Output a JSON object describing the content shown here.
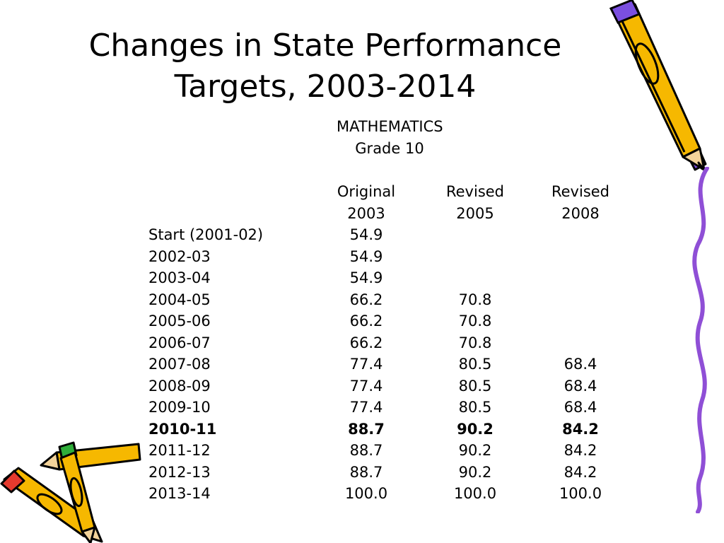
{
  "title": {
    "line1": "Changes in State Performance",
    "line2": "Targets, 2003-2014"
  },
  "subject": "MATHEMATICS",
  "grade": "Grade 10",
  "columns": [
    {
      "line1": "Original",
      "line2": "2003"
    },
    {
      "line1": "Revised",
      "line2": "2005"
    },
    {
      "line1": "Revised",
      "line2": "2008"
    }
  ],
  "rows": [
    {
      "label": "Start (2001-02)",
      "v1": "54.9",
      "v2": "",
      "v3": ""
    },
    {
      "label": "2002-03",
      "v1": "54.9",
      "v2": "",
      "v3": ""
    },
    {
      "label": "2003-04",
      "v1": "54.9",
      "v2": "",
      "v3": ""
    },
    {
      "label": "2004-05",
      "v1": "66.2",
      "v2": "70.8",
      "v3": ""
    },
    {
      "label": "2005-06",
      "v1": "66.2",
      "v2": "70.8",
      "v3": ""
    },
    {
      "label": "2006-07",
      "v1": "66.2",
      "v2": "70.8",
      "v3": ""
    },
    {
      "label": "2007-08",
      "v1": "77.4",
      "v2": "80.5",
      "v3": "68.4"
    },
    {
      "label": "2008-09",
      "v1": "77.4",
      "v2": "80.5",
      "v3": "68.4"
    },
    {
      "label": "2009-10",
      "v1": "77.4",
      "v2": "80.5",
      "v3": "68.4"
    },
    {
      "label": "2010-11",
      "v1": "88.7",
      "v2": "90.2",
      "v3": "84.2",
      "bold": true
    },
    {
      "label": "2011-12",
      "v1": "88.7",
      "v2": "90.2",
      "v3": "84.2"
    },
    {
      "label": "2012-13",
      "v1": "88.7",
      "v2": "90.2",
      "v3": "84.2"
    },
    {
      "label": "2013-14",
      "v1": "100.0",
      "v2": "100.0",
      "v3": "100.0"
    }
  ],
  "colors": {
    "pencil_body": "#f6b800",
    "pencil_outline": "#000000",
    "pencil_eraser_purple": "#7b4fe0",
    "pencil_eraser_red": "#e53a2e",
    "pencil_eraser_green": "#2fae3a",
    "squiggle": "#8f4fd6"
  },
  "decorations": [
    "pencil-icon-purple",
    "pencil-icon-green",
    "pencil-icon-red",
    "squiggle-line"
  ]
}
